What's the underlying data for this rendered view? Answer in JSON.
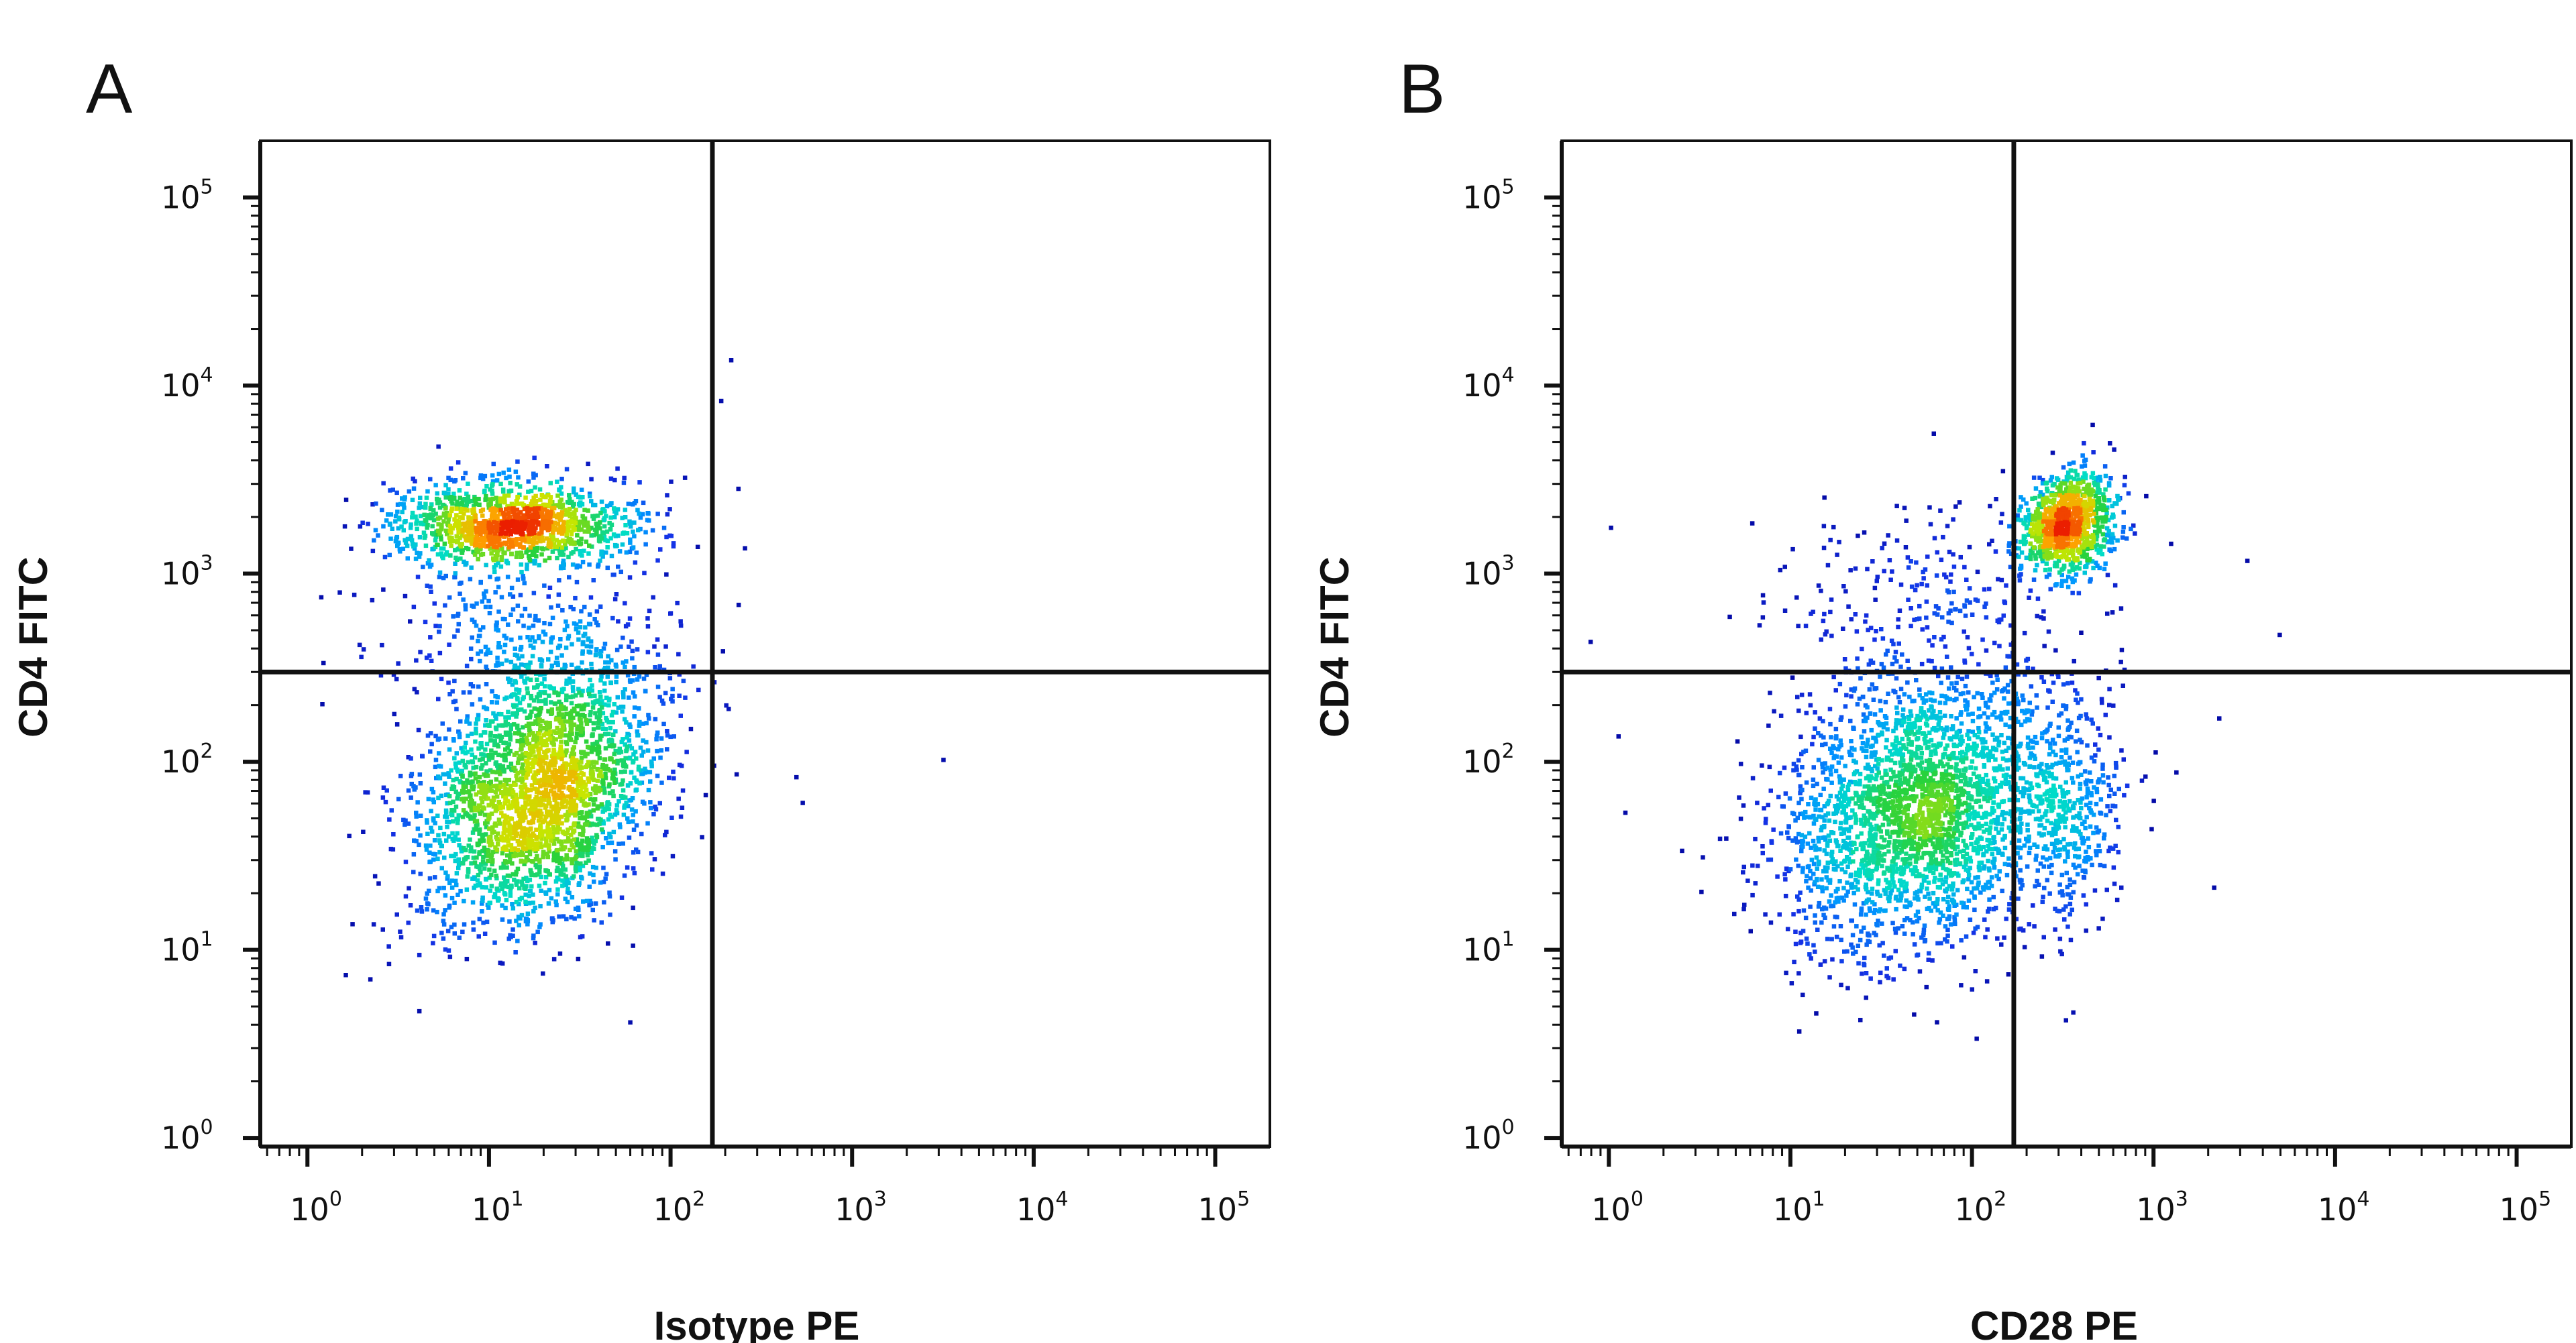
{
  "chart_data": [
    {
      "type": "scatter",
      "panel_label": "A",
      "title": "",
      "xlabel": "Isotype PE",
      "ylabel": "CD4 FITC",
      "xscale": "log",
      "yscale": "log",
      "xlim": [
        0.55,
        200000
      ],
      "ylim": [
        0.9,
        200000
      ],
      "x_ticks": [
        {
          "base": "10",
          "exp": "0",
          "value": 1
        },
        {
          "base": "10",
          "exp": "1",
          "value": 10
        },
        {
          "base": "10",
          "exp": "2",
          "value": 100
        },
        {
          "base": "10",
          "exp": "3",
          "value": 1000
        },
        {
          "base": "10",
          "exp": "4",
          "value": 10000
        },
        {
          "base": "10",
          "exp": "5",
          "value": 100000
        }
      ],
      "y_ticks": [
        {
          "base": "10",
          "exp": "0",
          "value": 1
        },
        {
          "base": "10",
          "exp": "1",
          "value": 10
        },
        {
          "base": "10",
          "exp": "2",
          "value": 100
        },
        {
          "base": "10",
          "exp": "3",
          "value": 1000
        },
        {
          "base": "10",
          "exp": "4",
          "value": 10000
        },
        {
          "base": "10",
          "exp": "5",
          "value": 100000
        }
      ],
      "quadrant_gate": {
        "x": 170,
        "y": 300
      },
      "populations": [
        {
          "center": [
            18,
            70
          ],
          "spread": [
            0.33,
            0.37
          ],
          "count": 2600,
          "corr": 0.3
        },
        {
          "center": [
            13,
            1900
          ],
          "spread": [
            0.32,
            0.11
          ],
          "count": 1300,
          "corr": 0.0
        },
        {
          "center": [
            14,
            520
          ],
          "spread": [
            0.38,
            0.22
          ],
          "count": 280,
          "corr": 0.0
        }
      ],
      "outliers": [
        [
          210,
          14000
        ],
        [
          185,
          8500
        ],
        [
          230,
          2900
        ],
        [
          250,
          1400
        ],
        [
          480,
          85
        ],
        [
          520,
          62
        ],
        [
          3100,
          105
        ],
        [
          225,
          88
        ]
      ]
    },
    {
      "type": "scatter",
      "panel_label": "B",
      "title": "",
      "xlabel": "CD28 PE",
      "ylabel": "CD4 FITC",
      "xscale": "log",
      "yscale": "log",
      "xlim": [
        0.55,
        200000
      ],
      "ylim": [
        0.9,
        200000
      ],
      "x_ticks": [
        {
          "base": "10",
          "exp": "0",
          "value": 1
        },
        {
          "base": "10",
          "exp": "1",
          "value": 10
        },
        {
          "base": "10",
          "exp": "2",
          "value": 100
        },
        {
          "base": "10",
          "exp": "3",
          "value": 1000
        },
        {
          "base": "10",
          "exp": "4",
          "value": 10000
        },
        {
          "base": "10",
          "exp": "5",
          "value": 100000
        }
      ],
      "y_ticks": [
        {
          "base": "10",
          "exp": "0",
          "value": 1
        },
        {
          "base": "10",
          "exp": "1",
          "value": 10
        },
        {
          "base": "10",
          "exp": "2",
          "value": 100
        },
        {
          "base": "10",
          "exp": "3",
          "value": 1000
        },
        {
          "base": "10",
          "exp": "4",
          "value": 10000
        },
        {
          "base": "10",
          "exp": "5",
          "value": 100000
        }
      ],
      "quadrant_gate": {
        "x": 170,
        "y": 300
      },
      "populations": [
        {
          "center": [
            50,
            55
          ],
          "spread": [
            0.38,
            0.36
          ],
          "count": 2600,
          "corr": 0.2
        },
        {
          "center": [
            330,
            1900
          ],
          "spread": [
            0.13,
            0.13
          ],
          "count": 950,
          "corr": 0.2
        },
        {
          "center": [
            320,
            60
          ],
          "spread": [
            0.16,
            0.3
          ],
          "count": 420,
          "corr": 0.0
        },
        {
          "center": [
            60,
            700
          ],
          "spread": [
            0.45,
            0.28
          ],
          "count": 260,
          "corr": 0.0
        }
      ],
      "outliers": [
        [
          1.0,
          1800
        ],
        [
          1.1,
          140
        ],
        [
          6,
          1900
        ],
        [
          3200,
          1200
        ],
        [
          1300,
          90
        ],
        [
          950,
          45
        ],
        [
          2100,
          22
        ],
        [
          60,
          5700
        ],
        [
          1.2,
          55
        ]
      ]
    }
  ]
}
